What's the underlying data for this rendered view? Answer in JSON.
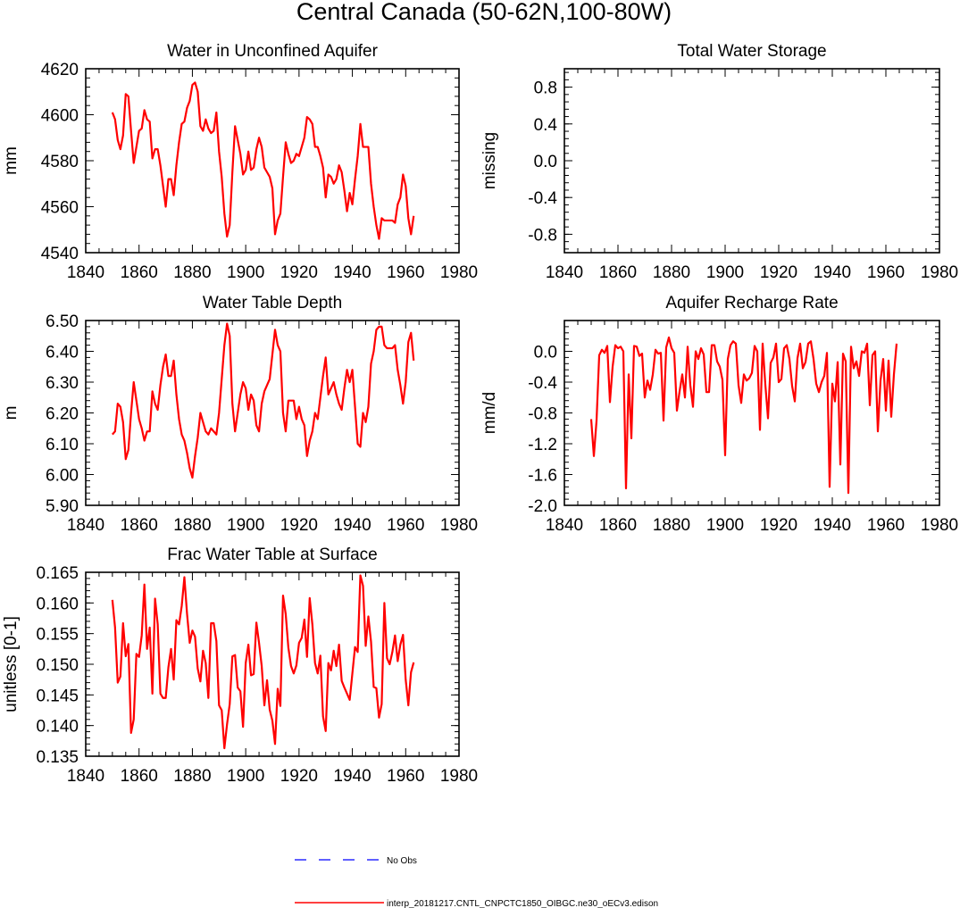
{
  "figure": {
    "title": "Central Canada (50-62N,100-80W)"
  },
  "legend": {
    "items": [
      {
        "label": "No Obs",
        "color": "#0000ff",
        "style": "dashed"
      },
      {
        "label": "interp_20181217.CNTL_CNPCTC1850_OIBGC.ne30_oECv3.edison",
        "color": "#ff0000",
        "style": "solid"
      }
    ]
  },
  "chart_data": [
    {
      "id": "panel-aquifer",
      "type": "line",
      "title": "Water in Unconfined Aquifer",
      "xlabel": "",
      "ylabel": "mm",
      "xlim": [
        1840,
        1980
      ],
      "ylim": [
        4540,
        4620
      ],
      "xticks": [
        1840,
        1860,
        1880,
        1900,
        1920,
        1940,
        1960,
        1980
      ],
      "yticks": [
        4540,
        4560,
        4580,
        4600,
        4620
      ],
      "yticklabels": [
        "4540",
        "4560",
        "4580",
        "4600",
        "4620"
      ],
      "yminor": 4,
      "series": [
        {
          "name": "interp_20181217.CNTL_CNPCTC1850_OIBGC.ne30_oECv3.edison",
          "color": "#ff0000",
          "x_start": 1850,
          "values": [
            4601,
            4598,
            4589,
            4585,
            4591,
            4609,
            4608,
            4593,
            4579,
            4586,
            4593,
            4594,
            4602,
            4598,
            4597,
            4581,
            4585,
            4585,
            4578,
            4569,
            4560,
            4572,
            4572,
            4565,
            4578,
            4588,
            4596,
            4597,
            4603,
            4606,
            4613,
            4614,
            4610,
            4595,
            4593,
            4598,
            4594,
            4592,
            4593,
            4601,
            4584,
            4573,
            4557,
            4547,
            4552,
            4575,
            4595,
            4589,
            4583,
            4574,
            4576,
            4584,
            4576,
            4577,
            4585,
            4590,
            4586,
            4577,
            4575,
            4573,
            4568,
            4548,
            4554,
            4557,
            4573,
            4588,
            4583,
            4579,
            4580,
            4583,
            4582,
            4586,
            4590,
            4599,
            4598,
            4596,
            4586,
            4586,
            4582,
            4577,
            4564,
            4574,
            4573,
            4570,
            4572,
            4578,
            4575,
            4567,
            4558,
            4566,
            4561,
            4572,
            4582,
            4596,
            4586,
            4586,
            4586,
            4570,
            4560,
            4552,
            4546,
            4555,
            4554,
            4554,
            4554,
            4554,
            4553,
            4561,
            4564,
            4574,
            4569,
            4555,
            4548,
            4556
          ]
        }
      ]
    },
    {
      "id": "panel-storage",
      "type": "line",
      "title": "Total Water Storage",
      "xlabel": "",
      "ylabel": "missing",
      "xlim": [
        1840,
        1980
      ],
      "ylim": [
        -1.0,
        1.0
      ],
      "xticks": [
        1840,
        1860,
        1880,
        1900,
        1920,
        1940,
        1960,
        1980
      ],
      "yticks": [
        -0.8,
        -0.4,
        0.0,
        0.4,
        0.8
      ],
      "yticklabels": [
        "-0.8",
        "-0.4",
        "0.0",
        "0.4",
        "0.8"
      ],
      "yminor": 4,
      "series": []
    },
    {
      "id": "panel-wtd",
      "type": "line",
      "title": "Water Table Depth",
      "xlabel": "",
      "ylabel": "m",
      "xlim": [
        1840,
        1980
      ],
      "ylim": [
        5.9,
        6.5
      ],
      "xticks": [
        1840,
        1860,
        1880,
        1900,
        1920,
        1940,
        1960,
        1980
      ],
      "yticks": [
        5.9,
        6.0,
        6.1,
        6.2,
        6.3,
        6.4,
        6.5
      ],
      "yticklabels": [
        "5.90",
        "6.00",
        "6.10",
        "6.20",
        "6.30",
        "6.40",
        "6.50"
      ],
      "yminor": 4,
      "series": [
        {
          "name": "interp_20181217.CNTL_CNPCTC1850_OIBGC.ne30_oECv3.edison",
          "color": "#ff0000",
          "x_start": 1850,
          "values": [
            6.13,
            6.14,
            6.23,
            6.22,
            6.17,
            6.05,
            6.08,
            6.2,
            6.3,
            6.24,
            6.18,
            6.15,
            6.11,
            6.14,
            6.14,
            6.27,
            6.23,
            6.21,
            6.29,
            6.35,
            6.39,
            6.32,
            6.32,
            6.37,
            6.26,
            6.18,
            6.13,
            6.11,
            6.07,
            6.02,
            5.99,
            6.06,
            6.12,
            6.2,
            6.17,
            6.14,
            6.13,
            6.15,
            6.14,
            6.13,
            6.2,
            6.31,
            6.42,
            6.49,
            6.45,
            6.23,
            6.14,
            6.2,
            6.26,
            6.3,
            6.28,
            6.21,
            6.26,
            6.24,
            6.16,
            6.14,
            6.23,
            6.27,
            6.29,
            6.31,
            6.39,
            6.47,
            6.42,
            6.4,
            6.2,
            6.14,
            6.24,
            6.24,
            6.24,
            6.18,
            6.22,
            6.18,
            6.16,
            6.06,
            6.11,
            6.14,
            6.2,
            6.18,
            6.25,
            6.32,
            6.38,
            6.26,
            6.28,
            6.3,
            6.26,
            6.23,
            6.21,
            6.28,
            6.34,
            6.3,
            6.34,
            6.22,
            6.1,
            6.09,
            6.2,
            6.17,
            6.22,
            6.36,
            6.4,
            6.47,
            6.48,
            6.48,
            6.42,
            6.41,
            6.41,
            6.41,
            6.42,
            6.34,
            6.29,
            6.23,
            6.3,
            6.43,
            6.46,
            6.37
          ]
        }
      ]
    },
    {
      "id": "panel-recharge",
      "type": "line",
      "title": "Aquifer Recharge Rate",
      "xlabel": "",
      "ylabel": "mm/d",
      "xlim": [
        1840,
        1980
      ],
      "ylim": [
        -2.0,
        0.4
      ],
      "xticks": [
        1840,
        1860,
        1880,
        1900,
        1920,
        1940,
        1960,
        1980
      ],
      "yticks": [
        -2.0,
        -1.6,
        -1.2,
        -0.8,
        -0.4,
        0.0
      ],
      "yticklabels": [
        "-2.0",
        "-1.6",
        "-1.2",
        "-0.8",
        "-0.4",
        "0.0"
      ],
      "yminor": 4,
      "series": [
        {
          "name": "interp_20181217.CNTL_CNPCTC1850_OIBGC.ne30_oECv3.edison",
          "color": "#ff0000",
          "x_start": 1850,
          "values": [
            -0.88,
            -1.36,
            -0.9,
            -0.05,
            0.02,
            -0.02,
            0.07,
            -0.66,
            -0.2,
            0.08,
            0.04,
            0.06,
            0.0,
            -1.78,
            -0.3,
            -1.13,
            0.07,
            0.06,
            -0.06,
            -0.03,
            -0.6,
            -0.38,
            -0.5,
            -0.3,
            0.02,
            -0.03,
            -0.02,
            -0.9,
            0.05,
            0.18,
            0.04,
            -0.02,
            -0.77,
            -0.52,
            -0.3,
            -0.6,
            0.06,
            -0.44,
            -0.72,
            0.0,
            -0.1,
            0.04,
            -0.04,
            -0.53,
            -0.53,
            0.08,
            0.08,
            -0.13,
            -0.2,
            -0.37,
            -1.35,
            -0.1,
            0.08,
            0.13,
            0.1,
            -0.44,
            -0.67,
            -0.3,
            -0.38,
            -0.35,
            -0.28,
            0.07,
            0.0,
            -1.02,
            0.1,
            -0.43,
            -0.87,
            -0.15,
            -0.08,
            0.1,
            -0.4,
            -0.36,
            0.04,
            0.08,
            -0.1,
            -0.45,
            -0.65,
            -0.09,
            0.1,
            -0.22,
            -0.14,
            0.1,
            0.13,
            -0.1,
            -0.42,
            -0.53,
            -0.4,
            -0.32,
            -0.02,
            -1.76,
            -0.42,
            -0.65,
            -0.14,
            -1.47,
            -0.03,
            -0.13,
            -1.84,
            0.06,
            -0.22,
            -0.13,
            -0.32,
            0.0,
            -0.02,
            0.1,
            -0.7,
            -0.05,
            0.0,
            -1.04,
            -0.38,
            -0.1,
            -0.77,
            -0.12,
            -0.85,
            -0.3,
            0.1
          ]
        }
      ]
    },
    {
      "id": "panel-frac",
      "type": "line",
      "title": "Frac Water Table at Surface",
      "xlabel": "",
      "ylabel": "unitless [0-1]",
      "xlim": [
        1840,
        1980
      ],
      "ylim": [
        0.135,
        0.165
      ],
      "xticks": [
        1840,
        1860,
        1880,
        1900,
        1920,
        1940,
        1960,
        1980
      ],
      "yticks": [
        0.135,
        0.14,
        0.145,
        0.15,
        0.155,
        0.16,
        0.165
      ],
      "yticklabels": [
        "0.135",
        "0.140",
        "0.145",
        "0.150",
        "0.155",
        "0.160",
        "0.165"
      ],
      "yminor": 4,
      "series": [
        {
          "name": "interp_20181217.CNTL_CNPCTC1850_OIBGC.ne30_oECv3.edison",
          "color": "#ff0000",
          "x_start": 1850,
          "values": [
            0.1605,
            0.156,
            0.147,
            0.148,
            0.1567,
            0.1513,
            0.1533,
            0.1388,
            0.141,
            0.1517,
            0.1512,
            0.1547,
            0.163,
            0.1525,
            0.156,
            0.1452,
            0.1607,
            0.1565,
            0.1452,
            0.1445,
            0.1445,
            0.1495,
            0.1525,
            0.1475,
            0.1572,
            0.1565,
            0.1595,
            0.1642,
            0.1582,
            0.1535,
            0.1555,
            0.1545,
            0.1493,
            0.1472,
            0.1522,
            0.1502,
            0.1445,
            0.1567,
            0.1567,
            0.1538,
            0.1433,
            0.1425,
            0.1363,
            0.1402,
            0.1435,
            0.1513,
            0.1515,
            0.1462,
            0.1456,
            0.1398,
            0.1502,
            0.1532,
            0.1482,
            0.1484,
            0.1568,
            0.1535,
            0.1497,
            0.1433,
            0.1474,
            0.1426,
            0.1408,
            0.137,
            0.146,
            0.1432,
            0.1612,
            0.1582,
            0.1527,
            0.1497,
            0.1485,
            0.1498,
            0.1535,
            0.1543,
            0.1573,
            0.1512,
            0.1608,
            0.1565,
            0.1502,
            0.1485,
            0.1514,
            0.1415,
            0.1391,
            0.1502,
            0.149,
            0.1522,
            0.1497,
            0.1532,
            0.1473,
            0.1462,
            0.1452,
            0.1442,
            0.1485,
            0.1528,
            0.152,
            0.1645,
            0.1628,
            0.153,
            0.1578,
            0.1537,
            0.1463,
            0.1461,
            0.1413,
            0.1435,
            0.16,
            0.151,
            0.15,
            0.152,
            0.1547,
            0.1505,
            0.1532,
            0.1548,
            0.1475,
            0.1433,
            0.1487,
            0.1503
          ]
        }
      ]
    }
  ]
}
